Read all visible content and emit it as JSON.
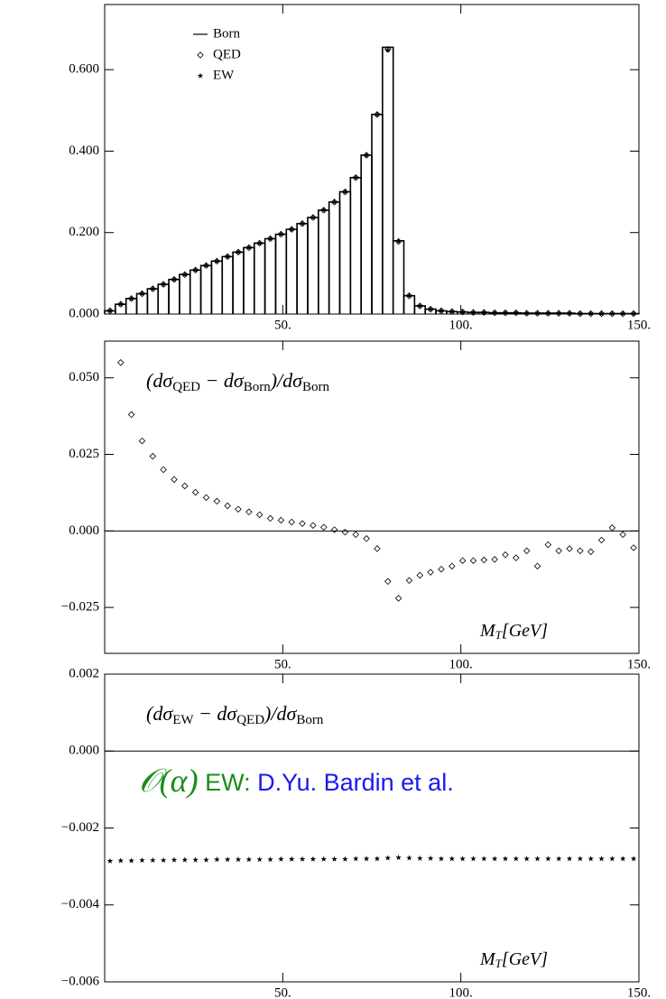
{
  "chart_data": [
    {
      "type": "histogram",
      "bins": [
        0,
        3,
        6,
        9,
        12,
        15,
        18,
        21,
        24,
        27,
        30,
        33,
        36,
        39,
        42,
        45,
        48,
        51,
        54,
        57,
        60,
        63,
        66,
        69,
        72,
        75,
        78,
        81,
        84,
        87,
        90,
        93,
        96,
        99,
        102,
        105,
        108,
        111,
        114,
        117,
        120,
        123,
        126,
        129,
        132,
        135,
        138,
        141,
        144,
        147,
        150
      ],
      "xlim": [
        0,
        150
      ],
      "ylim": [
        0,
        0.76
      ],
      "xticks": [
        {
          "value": 50,
          "label": "50."
        },
        {
          "value": 100,
          "label": "100."
        },
        {
          "value": 150,
          "label": "150."
        }
      ],
      "yticks": [
        {
          "value": 0,
          "label": "0.000"
        },
        {
          "value": 0.2,
          "label": "0.200"
        },
        {
          "value": 0.4,
          "label": "0.400"
        },
        {
          "value": 0.6,
          "label": "0.600"
        }
      ],
      "legend": "upper left",
      "series": [
        {
          "name": "Born",
          "color": "#000000",
          "marker": "step",
          "values": [
            0.008,
            0.024,
            0.038,
            0.05,
            0.062,
            0.073,
            0.085,
            0.097,
            0.108,
            0.119,
            0.13,
            0.141,
            0.152,
            0.163,
            0.174,
            0.185,
            0.196,
            0.208,
            0.222,
            0.237,
            0.255,
            0.275,
            0.3,
            0.335,
            0.39,
            0.49,
            0.655,
            0.18,
            0.045,
            0.02,
            0.012,
            0.008,
            0.006,
            0.005,
            0.004,
            0.004,
            0.003,
            0.003,
            0.003,
            0.002,
            0.002,
            0.002,
            0.002,
            0.002,
            0.001,
            0.001,
            0.001,
            0.001,
            0.001,
            0.001
          ]
        },
        {
          "name": "QED",
          "color": "#000000",
          "marker": "diamond",
          "values": [
            0.008,
            0.024,
            0.038,
            0.05,
            0.062,
            0.073,
            0.085,
            0.097,
            0.108,
            0.119,
            0.13,
            0.141,
            0.152,
            0.163,
            0.174,
            0.185,
            0.196,
            0.208,
            0.222,
            0.237,
            0.255,
            0.275,
            0.3,
            0.335,
            0.39,
            0.49,
            0.65,
            0.178,
            0.045,
            0.02,
            0.012,
            0.008,
            0.006,
            0.005,
            0.004,
            0.004,
            0.003,
            0.003,
            0.003,
            0.002,
            0.002,
            0.002,
            0.002,
            0.002,
            0.001,
            0.001,
            0.001,
            0.001,
            0.001,
            0.001
          ]
        },
        {
          "name": "EW",
          "color": "#000000",
          "marker": "star",
          "values": [
            0.008,
            0.024,
            0.038,
            0.05,
            0.062,
            0.073,
            0.085,
            0.097,
            0.108,
            0.119,
            0.13,
            0.141,
            0.152,
            0.163,
            0.174,
            0.185,
            0.196,
            0.208,
            0.222,
            0.237,
            0.255,
            0.275,
            0.3,
            0.335,
            0.39,
            0.49,
            0.648,
            0.178,
            0.045,
            0.02,
            0.012,
            0.008,
            0.006,
            0.005,
            0.004,
            0.004,
            0.003,
            0.003,
            0.003,
            0.002,
            0.002,
            0.002,
            0.002,
            0.002,
            0.001,
            0.001,
            0.001,
            0.001,
            0.001,
            0.001
          ]
        }
      ]
    },
    {
      "type": "histogram",
      "bins": [
        0,
        3,
        6,
        9,
        12,
        15,
        18,
        21,
        24,
        27,
        30,
        33,
        36,
        39,
        42,
        45,
        48,
        51,
        54,
        57,
        60,
        63,
        66,
        69,
        72,
        75,
        78,
        81,
        84,
        87,
        90,
        93,
        96,
        99,
        102,
        105,
        108,
        111,
        114,
        117,
        120,
        123,
        126,
        129,
        132,
        135,
        138,
        141,
        144,
        147,
        150
      ],
      "xlim": [
        0,
        150
      ],
      "ylim": [
        -0.04,
        0.062
      ],
      "xticks": [
        {
          "value": 50,
          "label": "50."
        },
        {
          "value": 100,
          "label": "100."
        },
        {
          "value": 150,
          "label": "150."
        }
      ],
      "yticks": [
        {
          "value": 0.05,
          "label": "0.050"
        },
        {
          "value": 0.025,
          "label": "0.025"
        },
        {
          "value": 0,
          "label": "0.000"
        },
        {
          "value": -0.025,
          "label": "−0.025"
        }
      ],
      "hline": 0,
      "annotation": [
        "(dσ",
        "QED",
        " − dσ",
        "Born",
        ")/dσ",
        "Born"
      ],
      "x_label": [
        "M",
        "T",
        "[GeV]"
      ],
      "series": [
        {
          "name": "QED",
          "color": "#000000",
          "marker": "diamond",
          "values": [
            null,
            0.055,
            0.038,
            0.0294,
            0.0244,
            0.02,
            0.0168,
            0.0147,
            0.0126,
            0.0109,
            0.0097,
            0.0082,
            0.0071,
            0.0062,
            0.0053,
            0.0041,
            0.0035,
            0.0029,
            0.0024,
            0.0018,
            0.0012,
            0.0004,
            -0.0004,
            -0.0012,
            -0.0025,
            -0.0058,
            -0.0165,
            -0.022,
            -0.0162,
            -0.0145,
            -0.0135,
            -0.0125,
            -0.0115,
            -0.0097,
            -0.0097,
            -0.0095,
            -0.0093,
            -0.0078,
            -0.0088,
            -0.0065,
            -0.0115,
            -0.0045,
            -0.0065,
            -0.0058,
            -0.0065,
            -0.0068,
            -0.003,
            0.001,
            -0.0012,
            -0.0055
          ]
        }
      ]
    },
    {
      "type": "histogram",
      "bins": [
        0,
        3,
        6,
        9,
        12,
        15,
        18,
        21,
        24,
        27,
        30,
        33,
        36,
        39,
        42,
        45,
        48,
        51,
        54,
        57,
        60,
        63,
        66,
        69,
        72,
        75,
        78,
        81,
        84,
        87,
        90,
        93,
        96,
        99,
        102,
        105,
        108,
        111,
        114,
        117,
        120,
        123,
        126,
        129,
        132,
        135,
        138,
        141,
        144,
        147,
        150
      ],
      "xlim": [
        0,
        150
      ],
      "ylim": [
        -0.006,
        0.002
      ],
      "xticks": [
        {
          "value": 50,
          "label": "50."
        },
        {
          "value": 100,
          "label": "100."
        },
        {
          "value": 150,
          "label": "150."
        }
      ],
      "yticks": [
        {
          "value": 0.002,
          "label": "0.002"
        },
        {
          "value": 0,
          "label": "0.000"
        },
        {
          "value": -0.002,
          "label": "−0.002"
        },
        {
          "value": -0.004,
          "label": "−0.004"
        },
        {
          "value": -0.006,
          "label": "−0.006"
        }
      ],
      "hline": 0,
      "annotation": [
        "(dσ",
        "EW",
        " − dσ",
        "QED",
        ")/dσ",
        "Born"
      ],
      "x_label": [
        "M",
        "T",
        "[GeV]"
      ],
      "note": [
        {
          "text": "𝒪(α)",
          "color": "#1a8c1a"
        },
        {
          "text": " EW:",
          "color": "#1a8c1a"
        },
        {
          "text": " D.Yu. Bardin et al.",
          "color": "#1a1aee"
        }
      ],
      "series": [
        {
          "name": "EW",
          "color": "#000000",
          "marker": "star",
          "values": [
            -0.00286,
            -0.00285,
            -0.00285,
            -0.00284,
            -0.00284,
            -0.00284,
            -0.00283,
            -0.00283,
            -0.00283,
            -0.00283,
            -0.00282,
            -0.00282,
            -0.00282,
            -0.00282,
            -0.00282,
            -0.00282,
            -0.00281,
            -0.00281,
            -0.00281,
            -0.00281,
            -0.00281,
            -0.00281,
            -0.00281,
            -0.0028,
            -0.0028,
            -0.0028,
            -0.00278,
            -0.00277,
            -0.00278,
            -0.00279,
            -0.00279,
            -0.0028,
            -0.0028,
            -0.0028,
            -0.0028,
            -0.0028,
            -0.0028,
            -0.0028,
            -0.0028,
            -0.0028,
            -0.0028,
            -0.0028,
            -0.0028,
            -0.0028,
            -0.0028,
            -0.0028,
            -0.0028,
            -0.0028,
            -0.0028,
            -0.0028
          ]
        }
      ]
    }
  ]
}
